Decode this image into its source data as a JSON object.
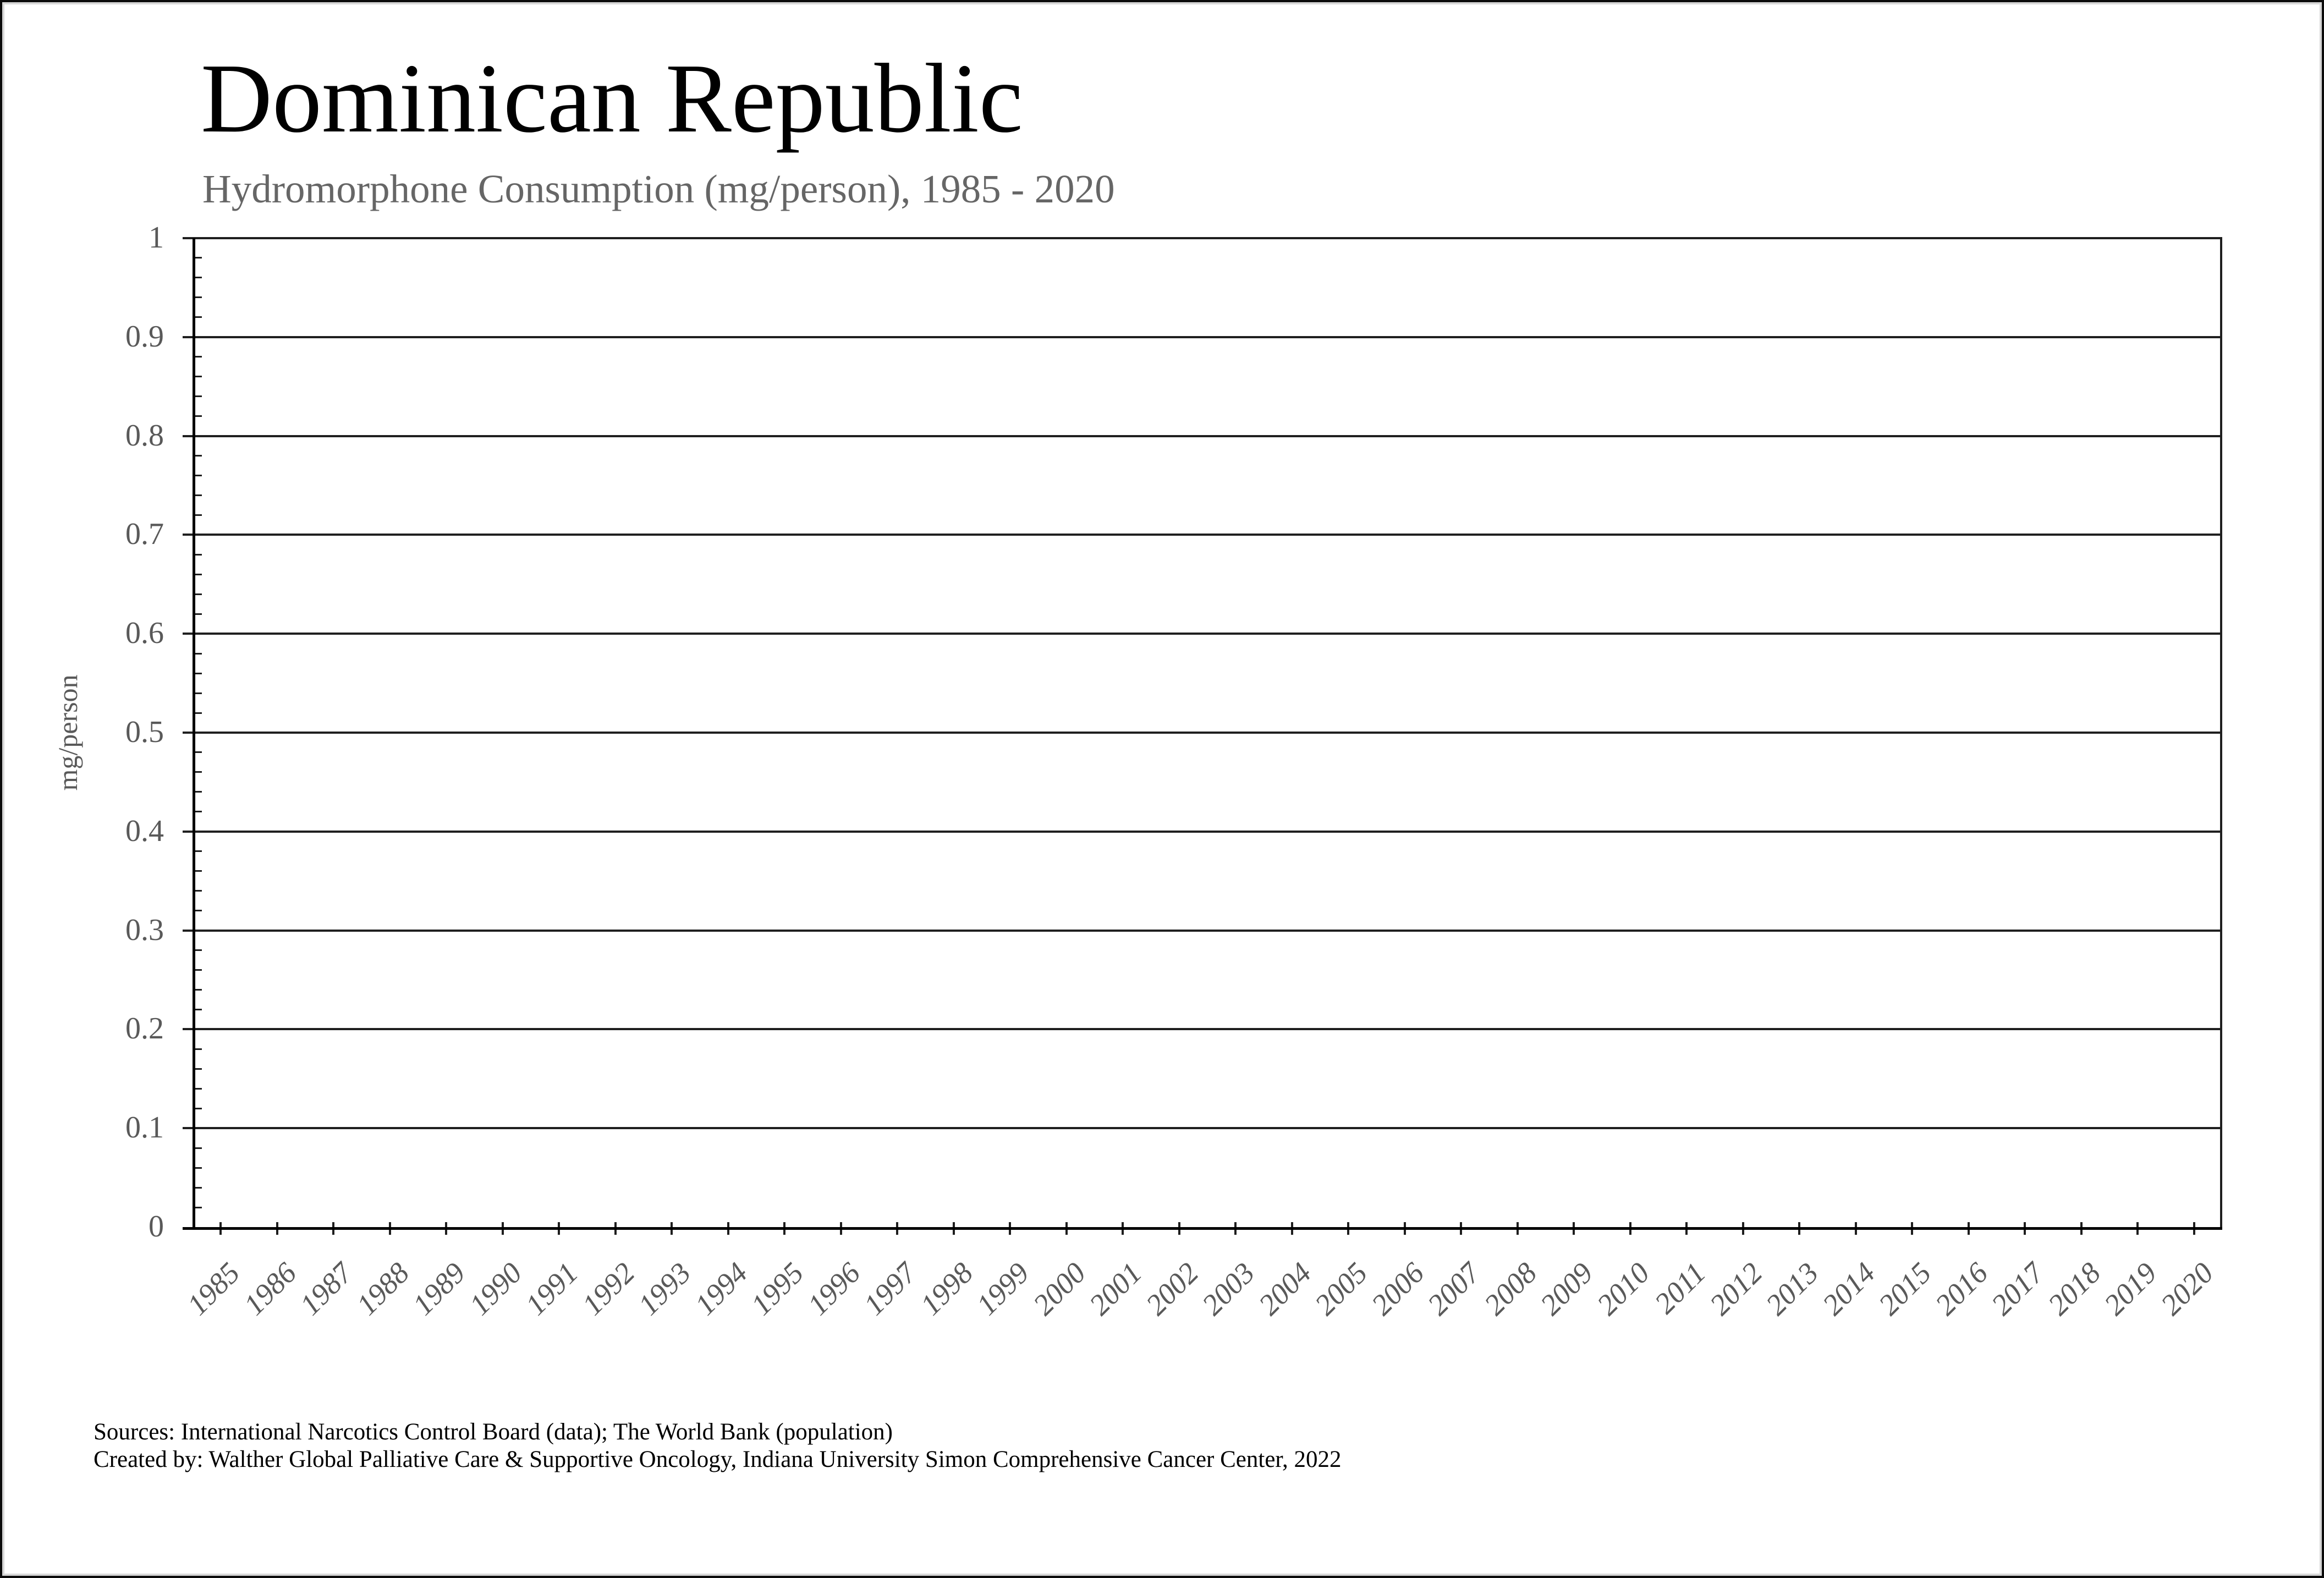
{
  "title": "Dominican Republic",
  "subtitle": "Hydromorphone Consumption (mg/person), 1985 - 2020",
  "y_axis": {
    "title": "mg/person",
    "tick_labels": [
      "1",
      "0.9",
      "0.8",
      "0.7",
      "0.6",
      "0.5",
      "0.4",
      "0.3",
      "0.2",
      "0.1",
      "0"
    ]
  },
  "x_axis": {
    "tick_labels": [
      "1985",
      "1986",
      "1987",
      "1988",
      "1989",
      "1990",
      "1991",
      "1992",
      "1993",
      "1994",
      "1995",
      "1996",
      "1997",
      "1998",
      "1999",
      "2000",
      "2001",
      "2002",
      "2003",
      "2004",
      "2005",
      "2006",
      "2007",
      "2008",
      "2009",
      "2010",
      "2011",
      "2012",
      "2013",
      "2014",
      "2015",
      "2016",
      "2017",
      "2018",
      "2019",
      "2020"
    ]
  },
  "footer": {
    "sources_line": "Sources: International Narcotics Control Board (data); The World Bank (population)",
    "created_line": "Created by: Walther Global Palliative Care & Supportive Oncology, Indiana University Simon Comprehensive Cancer Center, 2022"
  },
  "colors": {
    "title": "#000000",
    "subtitle_gray": "#666666",
    "label_gray": "#595959",
    "grid": "#1f1f1f",
    "axis": "#000000"
  },
  "chart_data": {
    "type": "line",
    "title": "Dominican Republic",
    "subtitle": "Hydromorphone Consumption (mg/person), 1985 - 2020",
    "xlabel": "",
    "ylabel": "mg/person",
    "ylim": [
      0,
      1
    ],
    "ytick_step": 0.1,
    "y_minor_tick_step": 0.02,
    "grid": "horizontal",
    "legend": "none",
    "x": [
      1985,
      1986,
      1987,
      1988,
      1989,
      1990,
      1991,
      1992,
      1993,
      1994,
      1995,
      1996,
      1997,
      1998,
      1999,
      2000,
      2001,
      2002,
      2003,
      2004,
      2005,
      2006,
      2007,
      2008,
      2009,
      2010,
      2011,
      2012,
      2013,
      2014,
      2015,
      2016,
      2017,
      2018,
      2019,
      2020
    ],
    "series": [
      {
        "name": "Hydromorphone consumption (mg/person)",
        "values": [
          0,
          0,
          0,
          0,
          0,
          0,
          0,
          0,
          0,
          0,
          0,
          0,
          0,
          0,
          0,
          0,
          0,
          0,
          0,
          0,
          0,
          0,
          0,
          0,
          0,
          0,
          0,
          0,
          0,
          0,
          0,
          0,
          0,
          0,
          0,
          0
        ]
      }
    ]
  }
}
